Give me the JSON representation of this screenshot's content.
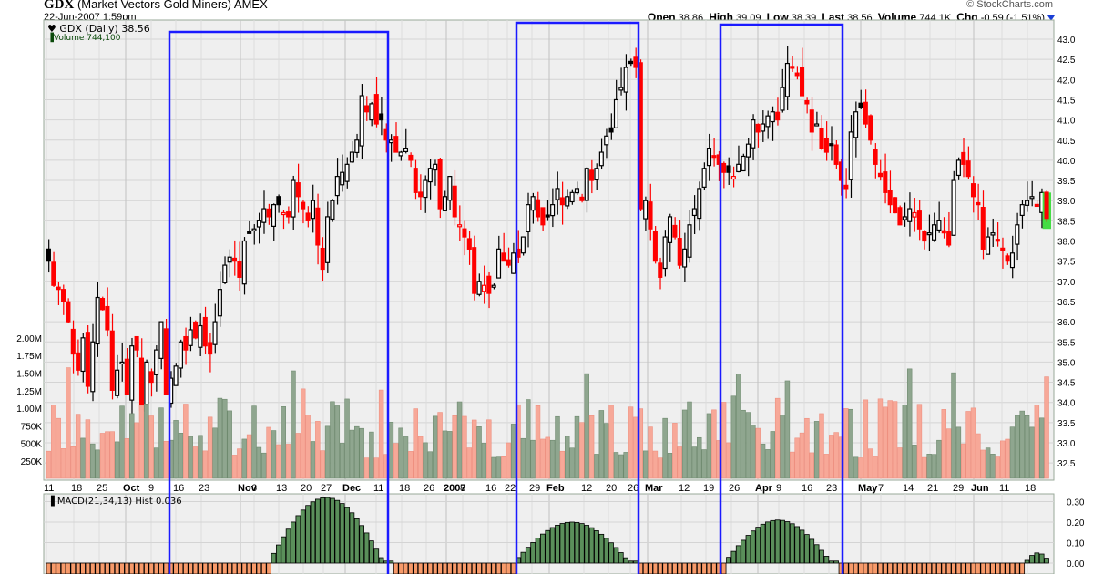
{
  "header": {
    "symbol": "GDX",
    "name": "(Market Vectors Gold Miners) AMEX",
    "datetime": "22-Jun-2007 1:59pm",
    "copyright": "© StockCharts.com",
    "quote": {
      "open_label": "Open",
      "open": "38.86",
      "high_label": "High",
      "high": "39.09",
      "low_label": "Low",
      "low": "38.39",
      "last_label": "Last",
      "last": "38.56",
      "volume_label": "Volume",
      "volume": "744.1K",
      "chg_label": "Chg",
      "chg": "-0.59 (-1.51%)"
    }
  },
  "legend": {
    "price": "GDX (Daily) 38.56",
    "volume": "Volume 744,100",
    "macd": "MACD(21,34,13) Hist 0.036"
  },
  "colors": {
    "up": "#000000",
    "down": "#ff0000",
    "highlight_box": "#1a1aff",
    "vol_up": "#8fa68f",
    "vol_down": "#f7a898",
    "macd_pos": "#5a8f5a",
    "macd_neg": "#f79a6a",
    "panel_bg": "#efefef",
    "last_highlight": "#44dd44"
  },
  "chart_data": [
    {
      "type": "candlestick",
      "title": "GDX (Daily) 38.56",
      "ylabel": "Price",
      "ylim": [
        32.3,
        43.3
      ],
      "y_ticks": [
        "32.5",
        "33.0",
        "33.5",
        "34.0",
        "34.5",
        "35.0",
        "35.5",
        "36.0",
        "36.5",
        "37.0",
        "37.5",
        "38.0",
        "38.5",
        "39.0",
        "39.5",
        "40.0",
        "40.5",
        "41.0",
        "41.5",
        "42.0",
        "42.5",
        "43.0"
      ],
      "x_ticks": [
        {
          "label": "11",
          "x": 48,
          "bold": false
        },
        {
          "label": "18",
          "x": 78,
          "bold": false
        },
        {
          "label": "25",
          "x": 106,
          "bold": false
        },
        {
          "label": "Oct",
          "x": 135,
          "bold": true
        },
        {
          "label": "9",
          "x": 163,
          "bold": false
        },
        {
          "label": "16",
          "x": 190,
          "bold": false
        },
        {
          "label": "23",
          "x": 218,
          "bold": false
        },
        {
          "label": "Nov",
          "x": 261,
          "bold": true
        },
        {
          "label": "6",
          "x": 276,
          "bold": false
        },
        {
          "label": "13",
          "x": 303,
          "bold": false
        },
        {
          "label": "20",
          "x": 330,
          "bold": false
        },
        {
          "label": "27",
          "x": 352,
          "bold": false
        },
        {
          "label": "Dec",
          "x": 376,
          "bold": true
        },
        {
          "label": "11",
          "x": 410,
          "bold": false
        },
        {
          "label": "18",
          "x": 438,
          "bold": false
        },
        {
          "label": "26",
          "x": 465,
          "bold": false
        },
        {
          "label": "2007",
          "x": 487,
          "bold": true
        },
        {
          "label": "8",
          "x": 505,
          "bold": false
        },
        {
          "label": "16",
          "x": 533,
          "bold": false
        },
        {
          "label": "22",
          "x": 554,
          "bold": false
        },
        {
          "label": "29",
          "x": 581,
          "bold": false
        },
        {
          "label": "Feb",
          "x": 600,
          "bold": true
        },
        {
          "label": "12",
          "x": 638,
          "bold": false
        },
        {
          "label": "20",
          "x": 665,
          "bold": false
        },
        {
          "label": "26",
          "x": 689,
          "bold": false
        },
        {
          "label": "Mar",
          "x": 708,
          "bold": true
        },
        {
          "label": "12",
          "x": 745,
          "bold": false
        },
        {
          "label": "19",
          "x": 772,
          "bold": false
        },
        {
          "label": "26",
          "x": 800,
          "bold": false
        },
        {
          "label": "Apr",
          "x": 829,
          "bold": true
        },
        {
          "label": "9",
          "x": 852,
          "bold": false
        },
        {
          "label": "16",
          "x": 880,
          "bold": false
        },
        {
          "label": "23",
          "x": 907,
          "bold": false
        },
        {
          "label": "May",
          "x": 942,
          "bold": true
        },
        {
          "label": "7",
          "x": 964,
          "bold": false
        },
        {
          "label": "14",
          "x": 991,
          "bold": false
        },
        {
          "label": "21",
          "x": 1018,
          "bold": false
        },
        {
          "label": "29",
          "x": 1046,
          "bold": false
        },
        {
          "label": "Jun",
          "x": 1066,
          "bold": true
        },
        {
          "label": "11",
          "x": 1097,
          "bold": false
        },
        {
          "label": "18",
          "x": 1125,
          "bold": false
        }
      ],
      "close_series_approx": [
        37.5,
        36.9,
        36.8,
        36.5,
        36.0,
        35.2,
        34.8,
        35.6,
        34.4,
        35.5,
        36.6,
        36.3,
        35.8,
        34.3,
        34.8,
        35.0,
        34.2,
        35.4,
        35.3,
        33.8,
        35.0,
        34.5,
        35.3,
        36.0,
        34.2,
        34.6,
        34.9,
        35.5,
        35.3,
        35.8,
        35.6,
        35.9,
        35.4,
        35.2,
        36.0,
        36.8,
        37.4,
        37.6,
        37.5,
        37.1,
        38.0,
        38.2,
        38.3,
        38.5,
        38.8,
        38.6,
        38.9,
        38.9,
        38.7,
        38.6,
        39.5,
        39.1,
        38.8,
        38.5,
        39.0,
        37.9,
        37.3,
        38.6,
        39.0,
        39.6,
        39.7,
        39.9,
        40.2,
        40.5,
        41.6,
        41.2,
        41.4,
        40.9,
        41.0,
        40.5,
        40.5,
        40.2,
        40.2,
        40.3,
        40.0,
        39.2,
        39.1,
        39.5,
        39.8,
        39.9,
        38.8,
        39.1,
        39.6,
        38.6,
        38.4,
        38.1,
        37.8,
        36.7,
        37.0,
        36.9,
        36.7,
        36.9,
        37.8,
        37.5,
        37.4,
        37.7,
        37.6,
        38.1,
        38.9,
        39.1,
        38.6,
        38.4,
        38.6,
        38.9,
        39.3,
        38.9,
        39.1,
        39.2,
        39.3,
        39.0,
        39.8,
        39.5,
        39.8,
        40.2,
        40.6,
        40.7,
        41.5,
        41.8,
        42.3,
        42.4,
        42.3,
        38.8,
        39.0,
        38.3,
        37.5,
        37.1,
        38.1,
        38.6,
        38.1,
        37.4,
        37.8,
        38.4,
        38.8,
        39.3,
        39.8,
        40.3,
        40.1,
        39.9,
        39.7,
        39.7,
        39.6,
        39.9,
        40.1,
        40.4,
        41.0,
        40.7,
        40.9,
        41.1,
        41.2,
        41.0,
        41.8,
        42.4,
        42.3,
        42.1,
        41.6,
        41.4,
        40.7,
        40.9,
        40.3,
        40.2,
        40.4,
        39.9,
        39.5,
        39.3,
        40.7,
        41.2,
        41.3,
        40.9,
        40.5,
        39.9,
        39.6,
        39.2,
        38.9,
        38.7,
        38.4,
        38.6,
        38.8,
        38.7,
        38.3,
        38.0,
        38.2,
        38.4,
        38.5,
        38.2,
        37.9,
        39.5,
        40.0,
        39.9,
        39.6,
        39.1,
        38.9,
        37.8,
        38.1,
        38.2,
        38.0,
        37.8,
        37.5,
        37.7,
        38.4,
        38.9,
        39.0,
        39.1,
        38.9,
        39.2,
        38.56
      ],
      "highlight_boxes": [
        {
          "x1": 186,
          "x2": 426,
          "y_top": 35
        },
        {
          "x1": 567,
          "x2": 701,
          "y_top": 25
        },
        {
          "x1": 791,
          "x2": 925,
          "y_top": 27
        }
      ],
      "last": {
        "open": 38.86,
        "high": 39.09,
        "low": 38.39,
        "close": 38.56
      }
    },
    {
      "type": "bar",
      "title": "Volume 744,100",
      "ylabel": "Volume",
      "y_ticks": [
        "250K",
        "500K",
        "750K",
        "1.00M",
        "1.25M",
        "1.50M",
        "1.75M",
        "2.00M"
      ],
      "ylim": [
        0,
        2100000
      ]
    },
    {
      "type": "bar",
      "title": "MACD(21,34,13) Hist 0.036",
      "y_ticks": [
        "0.00",
        "0.10",
        "0.20",
        "0.30"
      ],
      "ylim": [
        -0.02,
        0.33
      ],
      "regions": [
        {
          "from": "Sep-11",
          "to": "Oct-16",
          "sign": "negative"
        },
        {
          "from": "Oct-16",
          "to": "Dec-15",
          "sign": "positive",
          "peak": 0.31
        },
        {
          "from": "Dec-15",
          "to": "Jan-26",
          "sign": "negative"
        },
        {
          "from": "Jan-26",
          "to": "Feb-27",
          "sign": "positive",
          "peak": 0.19
        },
        {
          "from": "Feb-27",
          "to": "Mar-23",
          "sign": "negative"
        },
        {
          "from": "Mar-23",
          "to": "Apr-26",
          "sign": "positive",
          "peak": 0.2
        },
        {
          "from": "Apr-26",
          "to": "Jun-15",
          "sign": "negative"
        },
        {
          "from": "Jun-15",
          "to": "Jun-22",
          "sign": "positive",
          "last": 0.036
        }
      ]
    }
  ]
}
